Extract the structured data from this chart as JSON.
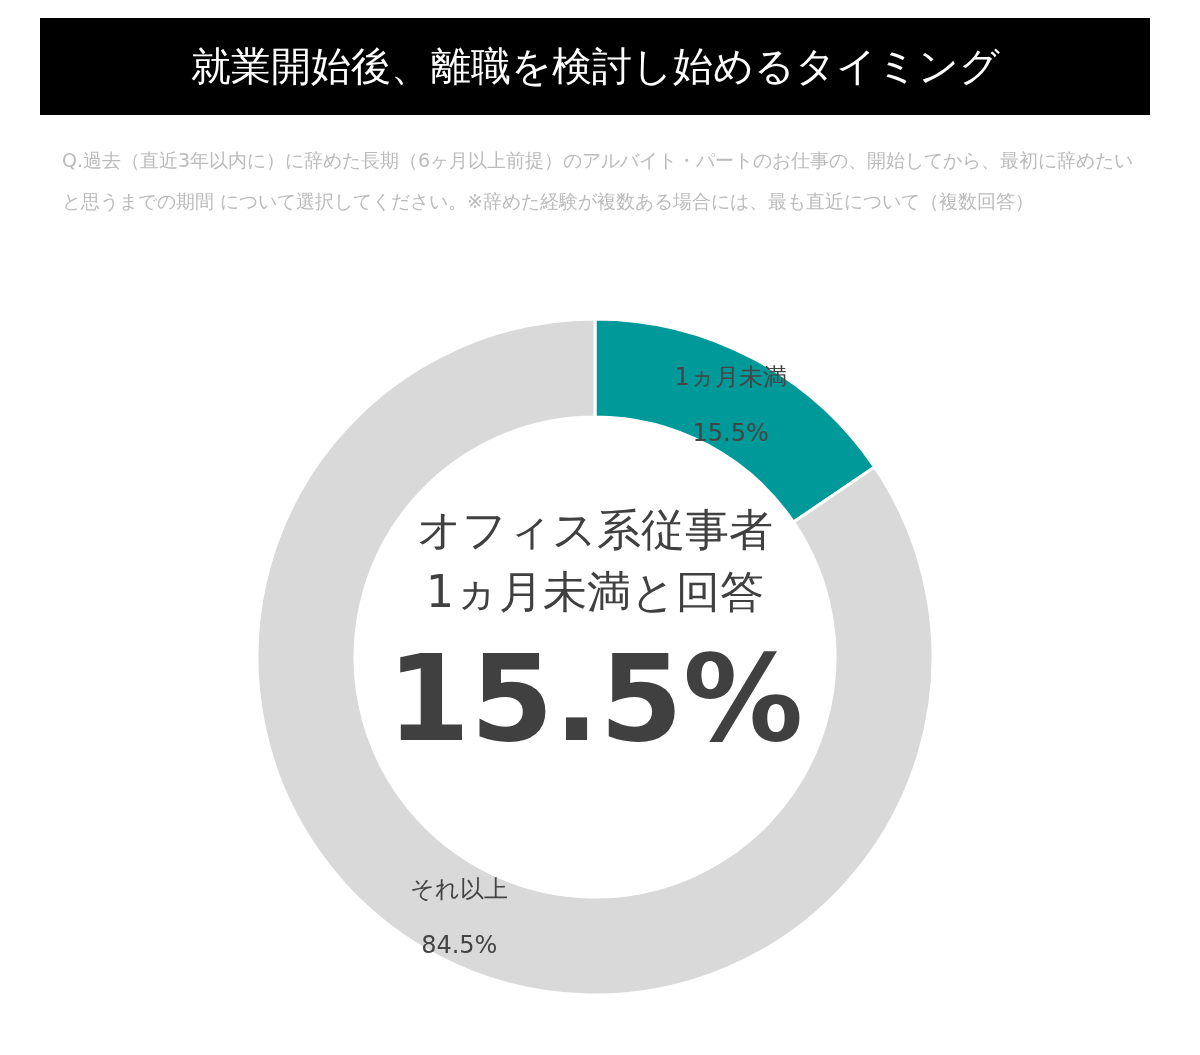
{
  "chart_data": {
    "type": "donut",
    "title": "就業開始後、離職を検討し始めるタイミング",
    "subtitle": "Q.過去（直近3年以内に）に辞めた長期（6ヶ月以上前提）のアルバイト・パートのお仕事の、開始してから、最初に辞めたいと思うまでの期間 について選択してください。※辞めた経験が複数ある場合には、最も直近について（複数回答）",
    "categories": [
      "1ヵ月未満",
      "それ以上"
    ],
    "values": [
      15.5,
      84.5
    ],
    "colors": [
      "#009999",
      "#d9d9d9"
    ],
    "value_labels": [
      "15.5%",
      "84.5%"
    ],
    "annotations": [
      "オフィス系従事者",
      "1ヵ月未満と回答",
      "15.5%"
    ]
  }
}
